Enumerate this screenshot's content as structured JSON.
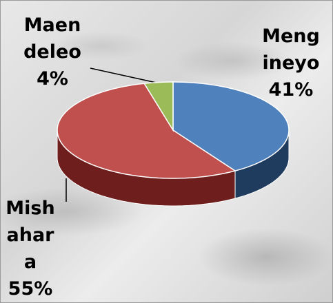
{
  "chart_data": {
    "type": "pie",
    "categories": [
      "Mengineyo",
      "Mishahara",
      "Maendeleo"
    ],
    "values": [
      41,
      55,
      4
    ],
    "value_labels": [
      "41%",
      "55%",
      "4%"
    ],
    "colors": [
      "#4f81bd",
      "#c0504d",
      "#9bbb59"
    ],
    "side_colors": [
      "#1f3b5e",
      "#6e1f1d",
      "#5a7030"
    ]
  }
}
